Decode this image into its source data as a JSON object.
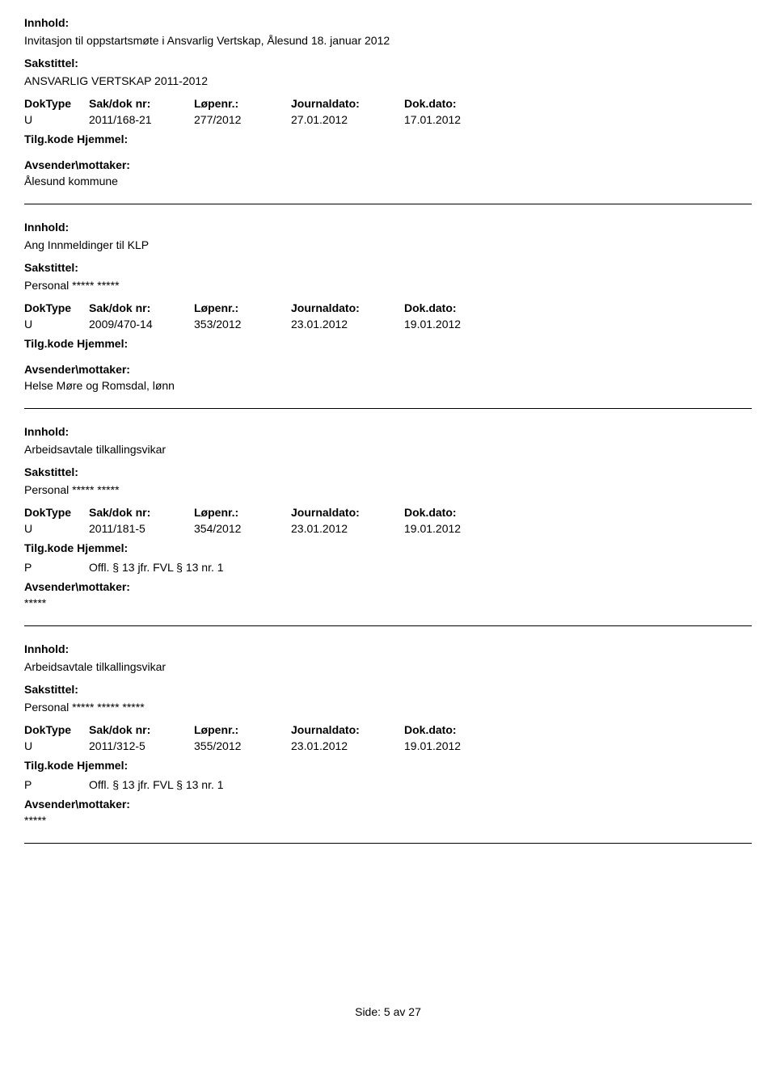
{
  "labels": {
    "innhold": "Innhold:",
    "sakstittel": "Sakstittel:",
    "doktype": "DokType",
    "sakdoknr": "Sak/dok nr:",
    "lopenr": "Løpenr.:",
    "journaldato": "Journaldato:",
    "dokdato": "Dok.dato:",
    "tilgkode": "Tilg.kode",
    "hjemmel": "Hjemmel:",
    "avsender": "Avsender\\mottaker:"
  },
  "records": [
    {
      "innhold": "Invitasjon til oppstartsmøte i Ansvarlig Vertskap, Ålesund 18. januar 2012",
      "sakstittel": "ANSVARLIG VERTSKAP 2011-2012",
      "doktype": "U",
      "sakdok": "2011/168-21",
      "lopenr": "277/2012",
      "journaldato": "27.01.2012",
      "dokdato": "17.01.2012",
      "hjemmel_code": "",
      "hjemmel_text": "",
      "avsender": "Ålesund kommune"
    },
    {
      "innhold": "Ang Innmeldinger til KLP",
      "sakstittel": "Personal ***** *****",
      "doktype": "U",
      "sakdok": "2009/470-14",
      "lopenr": "353/2012",
      "journaldato": "23.01.2012",
      "dokdato": "19.01.2012",
      "hjemmel_code": "",
      "hjemmel_text": "",
      "avsender": "Helse Møre og Romsdal, lønn"
    },
    {
      "innhold": "Arbeidsavtale tilkallingsvikar",
      "sakstittel": "Personal ***** *****",
      "doktype": "U",
      "sakdok": "2011/181-5",
      "lopenr": "354/2012",
      "journaldato": "23.01.2012",
      "dokdato": "19.01.2012",
      "hjemmel_code": "P",
      "hjemmel_text": "Offl. § 13 jfr. FVL § 13 nr. 1",
      "avsender": "*****"
    },
    {
      "innhold": "Arbeidsavtale tilkallingsvikar",
      "sakstittel": "Personal ***** ***** *****",
      "doktype": "U",
      "sakdok": "2011/312-5",
      "lopenr": "355/2012",
      "journaldato": "23.01.2012",
      "dokdato": "19.01.2012",
      "hjemmel_code": "P",
      "hjemmel_text": "Offl. § 13 jfr. FVL § 13 nr. 1",
      "avsender": "*****"
    }
  ],
  "footer": {
    "text": "Side:",
    "page": "5",
    "of": "av",
    "total": "27"
  }
}
